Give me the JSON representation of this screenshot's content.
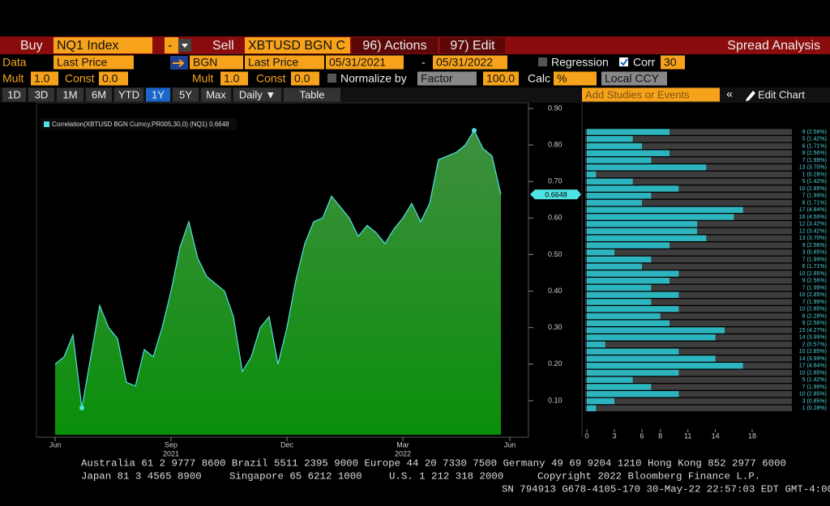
{
  "rows": [
    [
      "Buy",
      "NQ1 Index",
      "-",
      "Sell",
      "XBTUSD BGN C",
      "96) Actions",
      "97) Edit",
      "Spread Analysis"
    ],
    [
      "Data",
      "Last Price",
      "BGN",
      "Last Price",
      "05/31/2021",
      "-",
      "05/31/2022",
      "Regression",
      "Corr",
      "30"
    ],
    [
      "Mult",
      "1.0",
      "Const",
      "0.0",
      "Mult",
      "1.0",
      "Const",
      "0.0",
      "Normalize by",
      "Factor",
      "100.0",
      "Calc",
      "%",
      "Local CCY"
    ],
    [
      "1D",
      "3D",
      "1M",
      "6M",
      "YTD",
      "1Y",
      "5Y",
      "Max",
      "Daily ▼",
      "Table",
      "Add Studies or Events",
      "Edit Chart"
    ]
  ],
  "chart_data": {
    "type": "area",
    "legend": "Correlation(XBTUSD BGN Curncy,PR005,30,0) (NQ1) 0.6648",
    "categories": [
      "Jun",
      null,
      null,
      null,
      null,
      null,
      null,
      null,
      null,
      null,
      null,
      null,
      null,
      "Sep",
      null,
      null,
      null,
      null,
      null,
      null,
      null,
      null,
      null,
      null,
      null,
      null,
      "Dec",
      null,
      null,
      null,
      null,
      null,
      null,
      null,
      null,
      null,
      null,
      null,
      null,
      "Mar",
      null,
      null,
      null,
      null,
      null,
      null,
      null,
      null,
      null,
      null,
      null,
      "Jun",
      null
    ],
    "years": [
      null,
      null,
      null,
      null,
      null,
      null,
      null,
      null,
      null,
      null,
      null,
      null,
      null,
      "2021",
      null,
      null,
      null,
      null,
      null,
      null,
      null,
      null,
      null,
      null,
      null,
      null,
      null,
      null,
      null,
      null,
      null,
      null,
      null,
      null,
      null,
      null,
      null,
      null,
      null,
      "2022",
      null,
      null,
      null,
      null,
      null,
      null,
      null,
      null,
      null,
      null,
      null,
      null,
      null
    ],
    "values": [
      0.2,
      0.22,
      0.28,
      0.08,
      0.22,
      0.36,
      0.3,
      0.27,
      0.15,
      0.14,
      0.24,
      0.22,
      0.3,
      0.4,
      0.52,
      0.59,
      0.49,
      0.44,
      0.42,
      0.4,
      0.33,
      0.18,
      0.22,
      0.3,
      0.33,
      0.2,
      0.3,
      0.43,
      0.53,
      0.59,
      0.6,
      0.66,
      0.63,
      0.6,
      0.55,
      0.58,
      0.56,
      0.53,
      0.57,
      0.6,
      0.64,
      0.59,
      0.64,
      0.76,
      0.77,
      0.78,
      0.8,
      0.84,
      0.79,
      0.77,
      0.6648,
      null,
      null
    ],
    "last_value_label": "0.6648",
    "line_color": "#4fe3e3",
    "fill_top": "#3f8f3f",
    "fill_bottom": "#0a8f0a",
    "ylim": [
      0,
      0.92
    ],
    "yticks": [
      {
        "value": 0.1,
        "label": "0.10"
      },
      {
        "value": 0.2,
        "label": "0.20"
      },
      {
        "value": 0.3,
        "label": "0.30"
      },
      {
        "value": 0.4,
        "label": "0.40"
      },
      {
        "value": 0.5,
        "label": "0.50"
      },
      {
        "value": 0.6,
        "label": "0.60"
      },
      {
        "value": 0.7,
        "label": "0.70"
      },
      {
        "value": 0.8,
        "label": "0.80"
      },
      {
        "value": 0.9,
        "label": "0.90"
      }
    ],
    "histogram": {
      "color": "#2db5bf",
      "counts": [
        9,
        5,
        6,
        9,
        7,
        13,
        1,
        5,
        10,
        7,
        6,
        17,
        16,
        12,
        12,
        13,
        9,
        3,
        7,
        6,
        10,
        9,
        7,
        10,
        7,
        10,
        8,
        9,
        15,
        14,
        2,
        10,
        14,
        17,
        10,
        5,
        7,
        10,
        3,
        1
      ],
      "value_labels": [
        "9 (2.56%)",
        "5 (1.42%)",
        "6 (1.71%)",
        "9 (2.56%)",
        "7 (1.99%)",
        "13 (3.70%)",
        "1 (0.28%)",
        "5 (1.42%)",
        "10 (2.85%)",
        "7 (1.99%)",
        "6 (1.71%)",
        "17 (4.84%)",
        "16 (4.56%)",
        "12 (3.42%)",
        "12 (3.42%)",
        "13 (3.70%)",
        "9 (2.56%)",
        "3 (0.85%)",
        "7 (1.99%)",
        "6 (1.71%)",
        "10 (2.85%)",
        "9 (2.56%)",
        "7 (1.99%)",
        "10 (2.85%)",
        "7 (1.99%)",
        "10 (2.85%)",
        "8 (2.28%)",
        "9 (2.56%)",
        "15 (4.27%)",
        "14 (3.99%)",
        "2 (0.57%)",
        "10 (2.85%)",
        "14 (3.99%)",
        "17 (4.84%)",
        "10 (2.85%)",
        "5 (1.42%)",
        "7 (1.99%)",
        "10 (2.85%)",
        "3 (0.85%)",
        "1 (0.28%)"
      ],
      "xlim": [
        0,
        18
      ],
      "xticks": [
        0,
        3,
        6,
        8,
        11,
        14,
        18
      ]
    }
  },
  "footer": [
    [
      "Australia 61 2 9777 8600 Brazil 5511 2395 9000 Europe 44 20 7330 7500 Germany 49 69 9204 1210 Hong Kong 852 2977 6000"
    ],
    [
      "Japan 81 3 4565 8900",
      "Singapore 65 6212 1000",
      "U.S. 1 212 318 2000",
      "Copyright 2022 Bloomberg Finance L.P."
    ],
    [
      "SN 794913 G678-4105-170 30-May-22 22:57:03 EDT  GMT-4:00"
    ]
  ]
}
